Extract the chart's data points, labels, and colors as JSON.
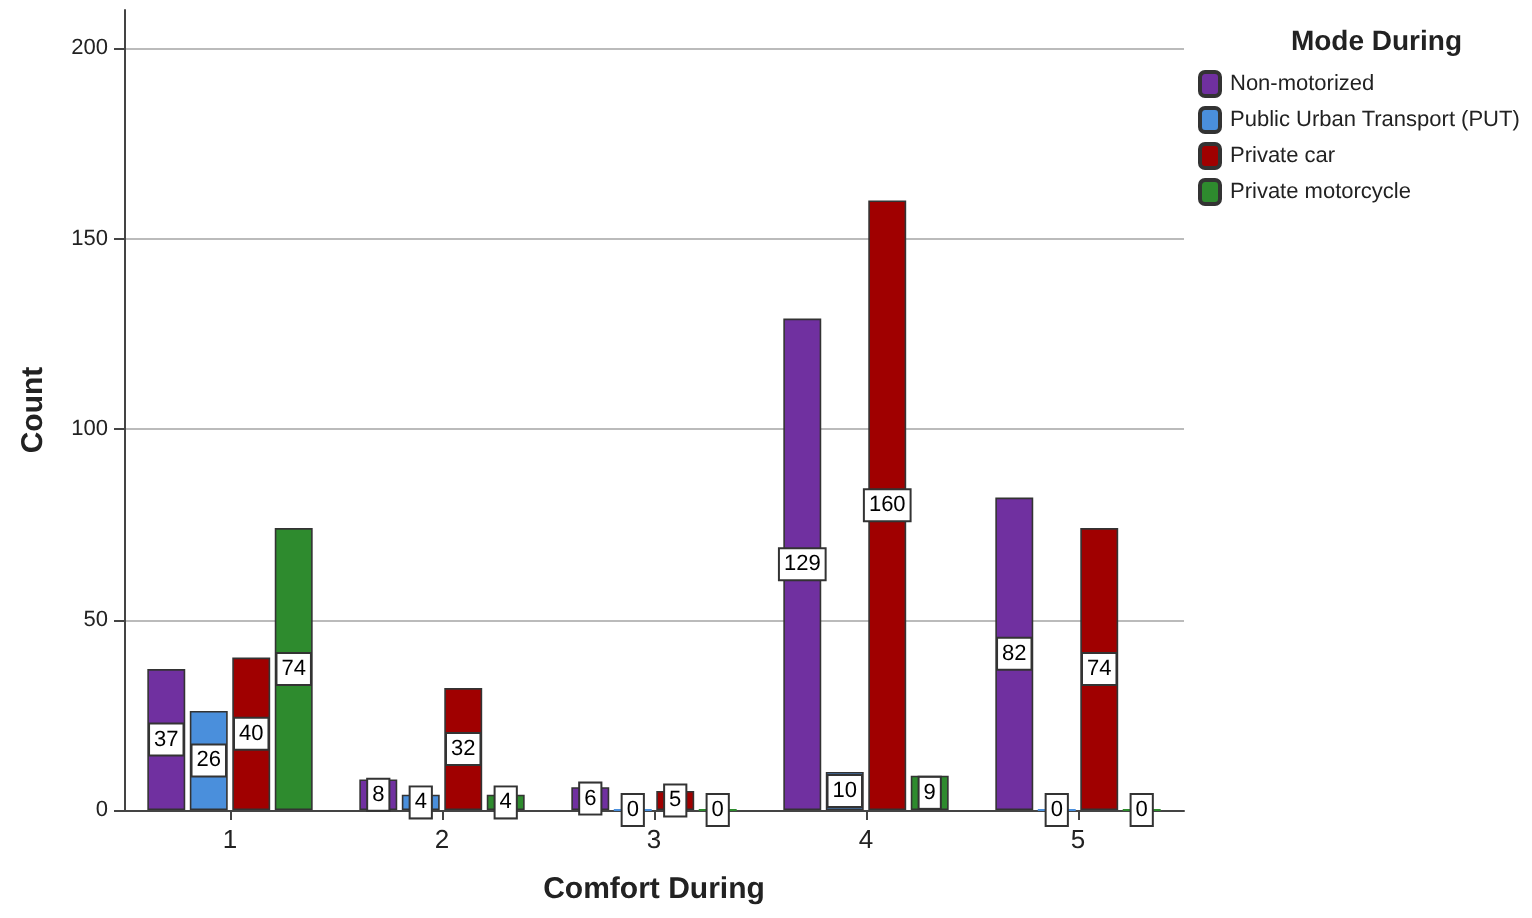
{
  "chart_data": {
    "type": "bar",
    "xlabel": "Comfort During",
    "ylabel": "Count",
    "legend_title": "Mode During",
    "categories": [
      "1",
      "2",
      "3",
      "4",
      "5"
    ],
    "series": [
      {
        "name": "Non-motorized",
        "color": "#7030a0",
        "values": [
          37,
          8,
          6,
          129,
          82
        ]
      },
      {
        "name": "Public Urban Transport (PUT)",
        "color": "#4a8fdc",
        "values": [
          26,
          4,
          0,
          10,
          0
        ]
      },
      {
        "name": "Private car",
        "color": "#a00000",
        "values": [
          40,
          32,
          5,
          160,
          74
        ]
      },
      {
        "name": "Private motorcycle",
        "color": "#2e8b2e",
        "values": [
          74,
          4,
          0,
          9,
          0
        ]
      }
    ],
    "ylim": [
      0,
      210
    ],
    "yticks": [
      0,
      50,
      100,
      150,
      200
    ],
    "grid": "y",
    "legend": "right",
    "data_labels": true
  }
}
